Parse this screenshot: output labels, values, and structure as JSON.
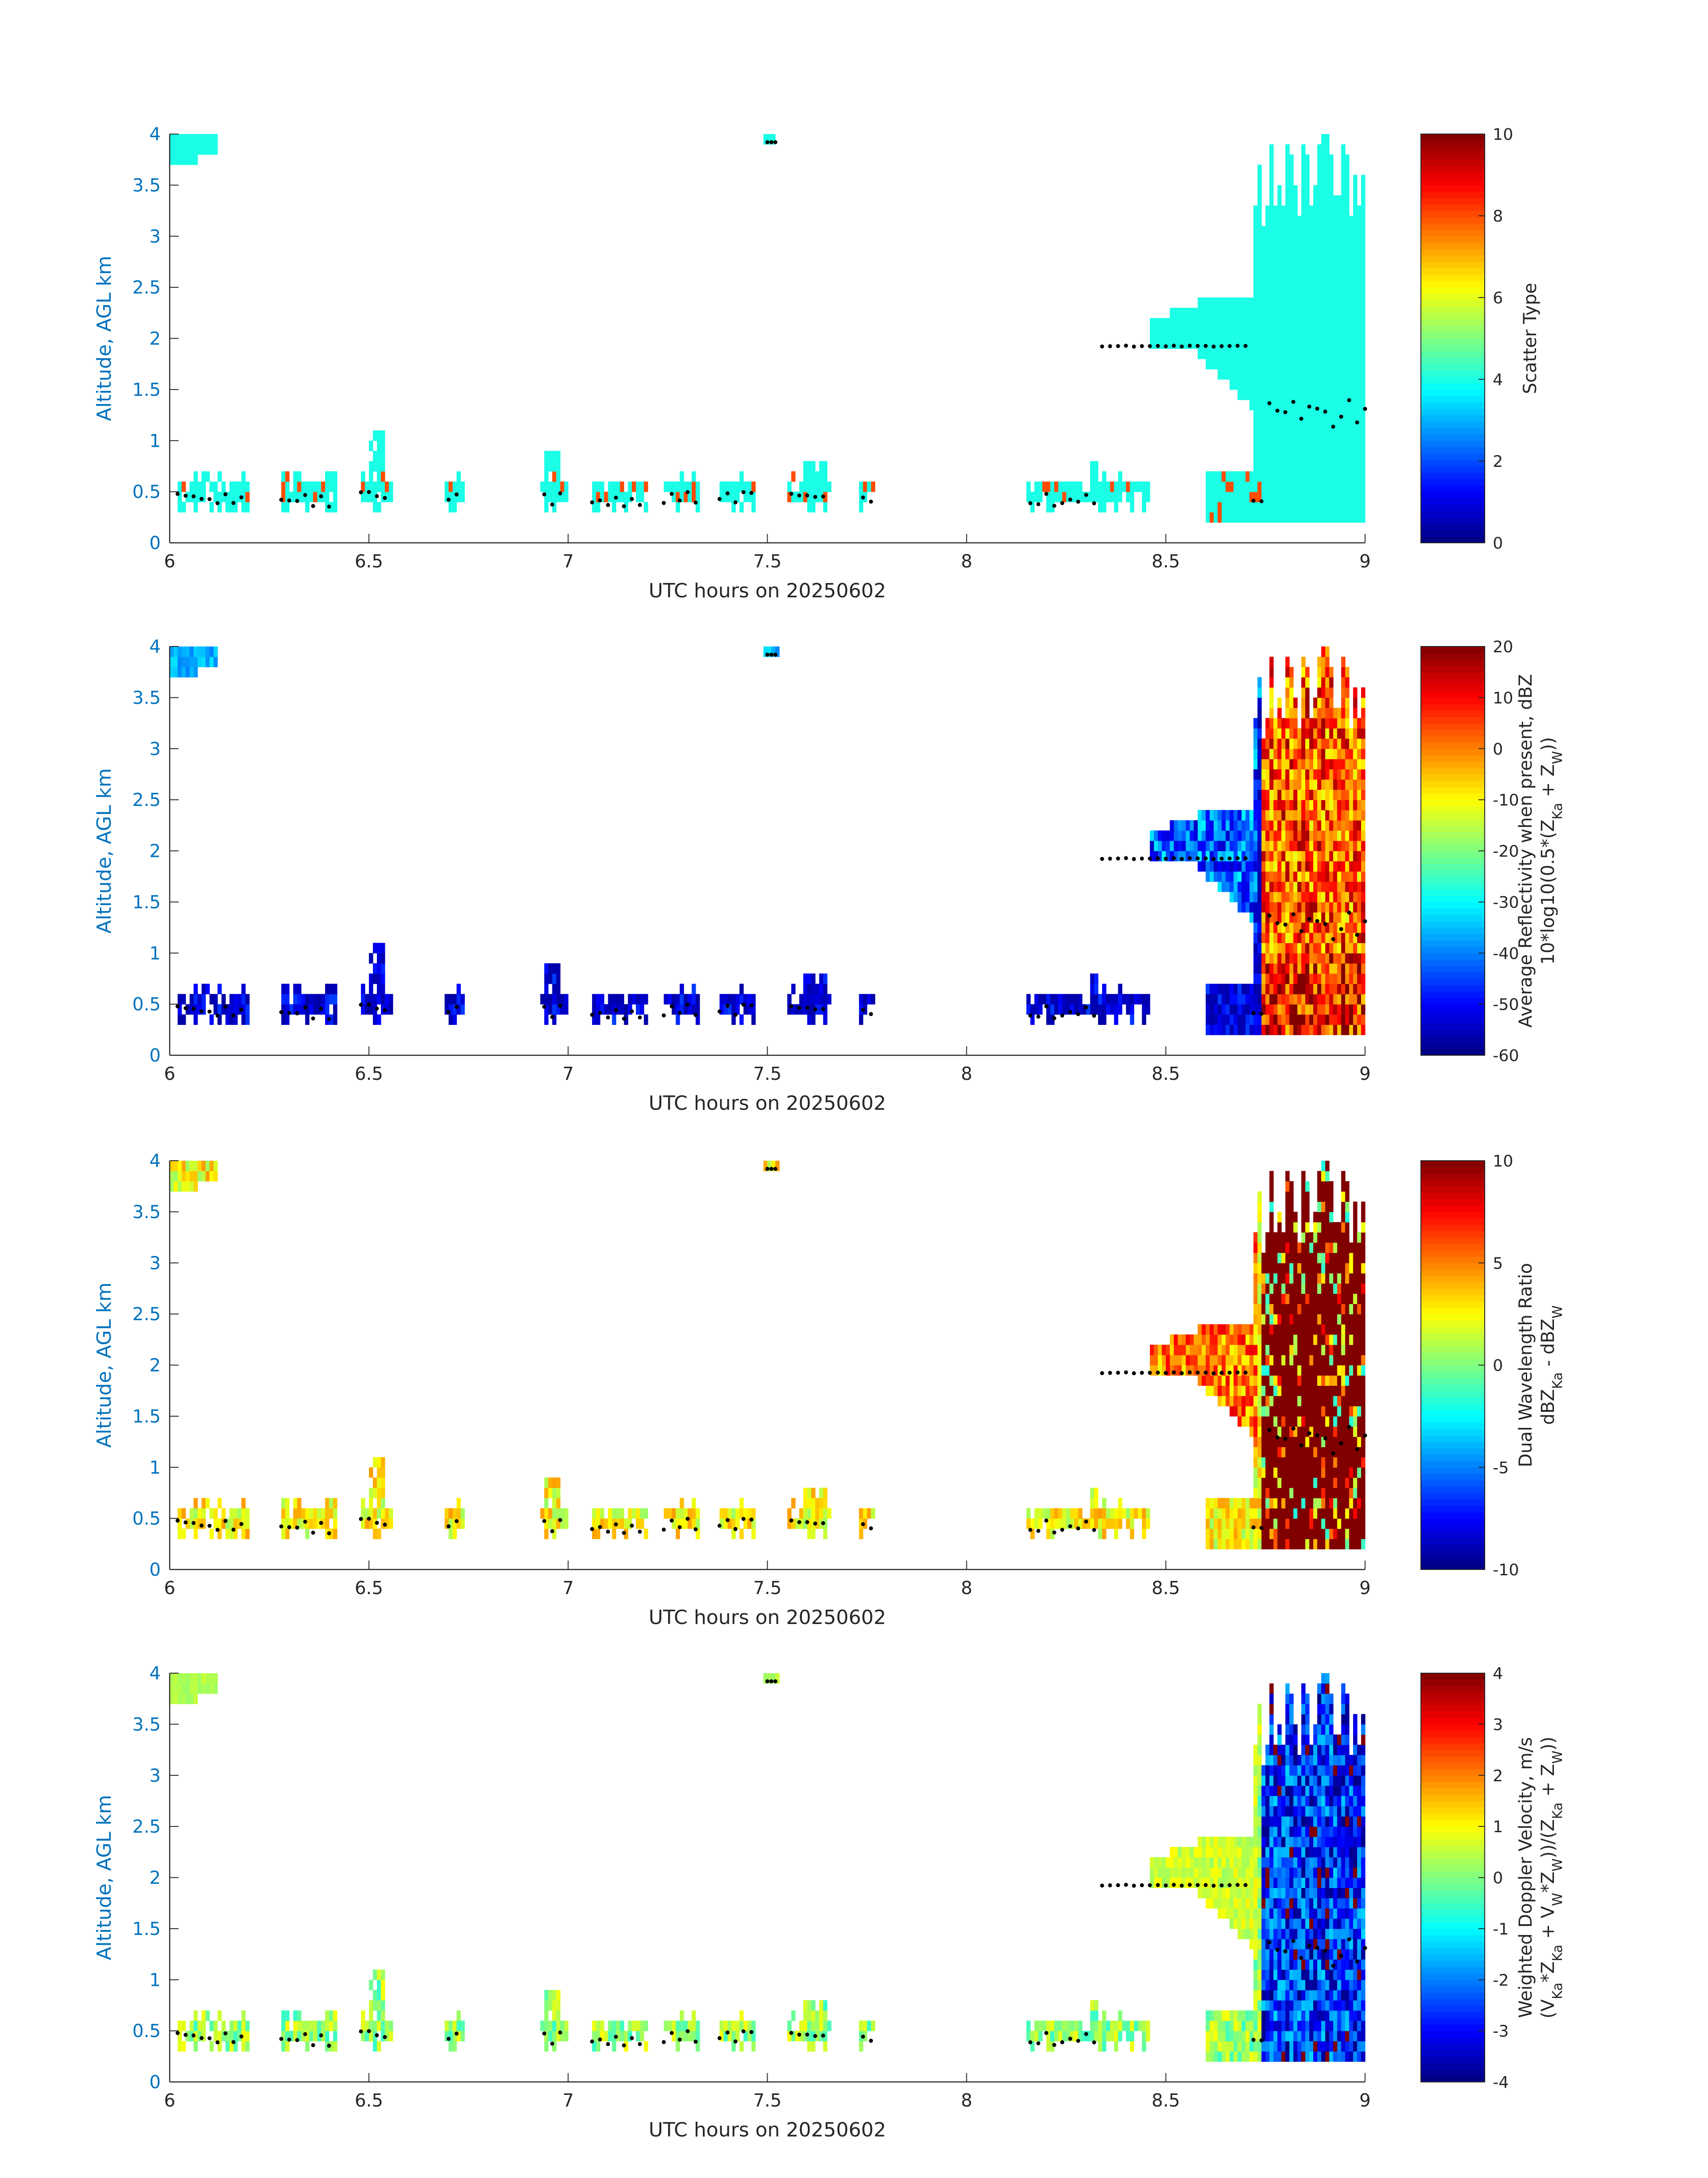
{
  "figure": {
    "xlabel": "UTC hours on 20250602",
    "ylabel": "Altitude, AGL km"
  },
  "chart_data": [
    {
      "type": "heatmap",
      "panel": "scatter-type",
      "xlabel": "UTC hours on 20250602",
      "ylabel": "Altitude, AGL km",
      "xlim": [
        6,
        9
      ],
      "ylim": [
        0,
        4
      ],
      "xticks": [
        "6",
        "6.5",
        "7",
        "7.5",
        "8",
        "8.5",
        "9"
      ],
      "yticks": [
        "0",
        "0.5",
        "1",
        "1.5",
        "2",
        "2.5",
        "3",
        "3.5",
        "4"
      ],
      "colorbar": {
        "label": [
          "Scatter Type"
        ],
        "range": [
          0,
          10
        ],
        "ticks": [
          "0",
          "2",
          "4",
          "6",
          "8",
          "10"
        ]
      },
      "colormap": "jet",
      "dominant_value": 4,
      "notes": "Mostly value 4 (cyan) with scattered value 8 (red-orange) cells near 0.3-0.6 km; deep cloud 8.7-9 h"
    },
    {
      "type": "heatmap",
      "panel": "average-reflectivity",
      "xlabel": "UTC hours on 20250602",
      "ylabel": "Altitude, AGL km",
      "xlim": [
        6,
        9
      ],
      "ylim": [
        0,
        4
      ],
      "xticks": [
        "6",
        "6.5",
        "7",
        "7.5",
        "8",
        "8.5",
        "9"
      ],
      "yticks": [
        "0",
        "0.5",
        "1",
        "1.5",
        "2",
        "2.5",
        "3",
        "3.5",
        "4"
      ],
      "colorbar": {
        "label": [
          "Average Reflectivity when present, dBZ",
          "10*log10(0.5*(Z",
          "Ka",
          " + Z",
          "W",
          "))"
        ],
        "range": [
          -60,
          20
        ],
        "ticks": [
          "-60",
          "-50",
          "-40",
          "-30",
          "-20",
          "-10",
          "0",
          "10",
          "20"
        ]
      },
      "colormap": "jet",
      "notes": "Low clouds about -55 dBZ; deep cloud after 8.72 h between -5 and 20 dBZ"
    },
    {
      "type": "heatmap",
      "panel": "dual-wavelength-ratio",
      "xlabel": "UTC hours on 20250602",
      "ylabel": "Altitude, AGL km",
      "xlim": [
        6,
        9
      ],
      "ylim": [
        0,
        4
      ],
      "xticks": [
        "6",
        "6.5",
        "7",
        "7.5",
        "8",
        "8.5",
        "9"
      ],
      "yticks": [
        "0",
        "0.5",
        "1",
        "1.5",
        "2",
        "2.5",
        "3",
        "3.5",
        "4"
      ],
      "colorbar": {
        "label": [
          "Dual Wavelength Ratio",
          "dBZ",
          "Ka",
          " - dBZ",
          "W"
        ],
        "range": [
          -10,
          10
        ],
        "ticks": [
          "-10",
          "-5",
          "0",
          "5",
          "10"
        ]
      },
      "colormap": "jet",
      "notes": "Low clouds about 0-4 dB; deep cloud after 8.75 h saturating near 10 dB"
    },
    {
      "type": "heatmap",
      "panel": "weighted-doppler-velocity",
      "xlabel": "UTC hours on 20250602",
      "ylabel": "Altitude, AGL km",
      "xlim": [
        6,
        9
      ],
      "ylim": [
        0,
        4
      ],
      "xticks": [
        "6",
        "6.5",
        "7",
        "7.5",
        "8",
        "8.5",
        "9"
      ],
      "yticks": [
        "0",
        "0.5",
        "1",
        "1.5",
        "2",
        "2.5",
        "3",
        "3.5",
        "4"
      ],
      "colorbar": {
        "label": [
          "Weighted Doppler Velocity, m/s",
          "(V",
          "Ka",
          "*Z",
          "Ka",
          " + V",
          "W",
          "*Z",
          "W",
          "))/(Z",
          "Ka",
          " + Z",
          "W",
          "))"
        ],
        "range": [
          -4,
          4
        ],
        "ticks": [
          "-4",
          "-3",
          "-2",
          "-1",
          "0",
          "1",
          "2",
          "3",
          "4"
        ]
      },
      "colormap": "jet",
      "notes": "Low clouds about -0.5 to 1 m/s; deep cloud after 8.75 h about -4 to -2 m/s"
    }
  ]
}
